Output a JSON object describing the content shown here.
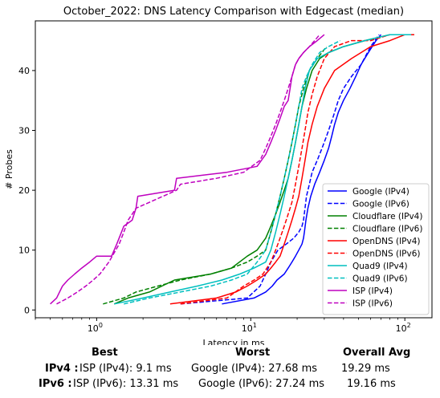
{
  "chart_data": {
    "type": "line",
    "title": "October_2022: DNS Latency Comparison with Edgecast (median)",
    "xlabel": "Latency in ms",
    "ylabel": "# Probes",
    "xscale": "log",
    "xlim": [
      0.4,
      150
    ],
    "ylim": [
      -1.3,
      48.3
    ],
    "xticks": [
      1,
      10,
      100
    ],
    "xtick_labels": [
      "10^0",
      "10^1",
      "10^2"
    ],
    "yticks": [
      0,
      10,
      20,
      30,
      40
    ],
    "grid": false,
    "legend": "lower-right",
    "series": [
      {
        "name": "Google (IPv4)",
        "color": "#0000ff",
        "dash": "solid",
        "x": [
          6.5,
          10.5,
          12.5,
          13.8,
          14.8,
          16.5,
          17.5,
          18.5,
          19.5,
          20.5,
          21.5,
          22.0,
          22.3,
          22.8,
          23.5,
          24.5,
          26.0,
          28.0,
          30.0,
          32.0,
          33.5,
          35.0,
          37.0,
          40.0,
          44.0,
          48.0,
          52.0,
          58.0,
          65.0,
          70.0
        ],
        "y": [
          1,
          2,
          3,
          4,
          5,
          6,
          7,
          8,
          9,
          10,
          11,
          12,
          13,
          15,
          17,
          19,
          21,
          23,
          25,
          27,
          29,
          31,
          33,
          35,
          37,
          39,
          41,
          43,
          45,
          46
        ]
      },
      {
        "name": "Google (IPv6)",
        "color": "#0000ff",
        "dash": "dashed",
        "x": [
          3.5,
          9.5,
          11.5,
          12.5,
          13.5,
          15.0,
          17.0,
          19.0,
          20.5,
          21.5,
          22.0,
          22.5,
          23.0,
          24.0,
          25.0,
          27.0,
          29.0,
          31.0,
          33.0,
          35.0,
          37.0,
          40.0,
          45.0,
          52.0,
          60.0,
          68.0
        ],
        "y": [
          1,
          2,
          4,
          6,
          8,
          10,
          11,
          12,
          13,
          14,
          15,
          17,
          19,
          21,
          23,
          25,
          27,
          29,
          31,
          33,
          35,
          37,
          39,
          41,
          44,
          46
        ]
      },
      {
        "name": "Cloudflare (IPv4)",
        "color": "#008000",
        "dash": "solid",
        "x": [
          1.3,
          1.6,
          2.2,
          3.2,
          5.5,
          7.5,
          9.5,
          11.0,
          12.5,
          13.5,
          14.5,
          15.5,
          16.5,
          17.5,
          18.5,
          19.5,
          20.5,
          21.5,
          23.0,
          25.0,
          28.0,
          32.0,
          40.0,
          55.0,
          80.0,
          115.0
        ],
        "y": [
          1,
          2,
          3,
          5,
          6,
          7,
          9,
          10,
          12,
          14,
          16,
          18,
          20,
          22,
          25,
          28,
          31,
          34,
          37,
          40,
          42,
          43,
          44,
          45,
          46,
          46
        ]
      },
      {
        "name": "Cloudflare (IPv6)",
        "color": "#008000",
        "dash": "dashed",
        "x": [
          1.1,
          1.5,
          1.8,
          2.5,
          3.5,
          5.5,
          7.5,
          9.5,
          11.0,
          12.5,
          13.5,
          14.5,
          15.5,
          16.5,
          17.5,
          18.5,
          19.5,
          20.5,
          22.0,
          24.0,
          27.0,
          31.0
        ],
        "y": [
          1,
          2,
          3,
          4,
          5,
          6,
          7,
          8,
          9,
          10,
          13,
          16,
          19,
          22,
          25,
          28,
          31,
          34,
          37,
          40,
          42,
          44
        ]
      },
      {
        "name": "OpenDNS (IPv4)",
        "color": "#ff0000",
        "dash": "solid",
        "x": [
          3.0,
          6.0,
          8.0,
          9.5,
          11.0,
          12.5,
          13.5,
          14.5,
          15.5,
          16.5,
          17.5,
          18.5,
          19.5,
          20.5,
          21.5,
          22.5,
          23.5,
          25.0,
          27.0,
          30.0,
          35.0,
          45.0,
          60.0,
          80.0,
          100.0,
          115.0
        ],
        "y": [
          1,
          2,
          3,
          4,
          5,
          6,
          7,
          8,
          9,
          11,
          13,
          15,
          17,
          19,
          22,
          25,
          28,
          31,
          34,
          37,
          40,
          42,
          44,
          45,
          46,
          46
        ]
      },
      {
        "name": "OpenDNS (IPv6)",
        "color": "#ff0000",
        "dash": "dashed",
        "x": [
          3.5,
          7.0,
          9.0,
          10.5,
          12.0,
          13.5,
          14.5,
          15.5,
          16.5,
          17.5,
          18.5,
          19.5,
          20.5,
          21.5,
          22.5,
          23.5,
          25.0,
          27.0,
          30.0,
          35.0,
          45.0,
          60.0,
          80.0,
          95.0
        ],
        "y": [
          1,
          2,
          4,
          5,
          6,
          8,
          10,
          12,
          14,
          16,
          18,
          21,
          24,
          27,
          30,
          33,
          36,
          39,
          42,
          44,
          45,
          45,
          46,
          46
        ]
      },
      {
        "name": "Quad9 (IPv4)",
        "color": "#00bfbf",
        "dash": "solid",
        "x": [
          1.3,
          2.0,
          3.0,
          4.5,
          6.5,
          8.5,
          10.5,
          12.5,
          13.5,
          14.5,
          15.5,
          16.5,
          17.5,
          18.5,
          19.5,
          20.5,
          21.5,
          22.5,
          24.0,
          27.0,
          32.0,
          40.0,
          55.0,
          80.0,
          110.0
        ],
        "y": [
          1,
          2,
          3,
          4,
          5,
          6,
          7,
          8,
          10,
          13,
          16,
          19,
          22,
          25,
          28,
          31,
          34,
          37,
          40,
          42,
          43,
          44,
          45,
          46,
          46
        ]
      },
      {
        "name": "Quad9 (IPv6)",
        "color": "#00bfbf",
        "dash": "dashed",
        "x": [
          1.5,
          2.2,
          3.5,
          5.5,
          7.5,
          9.5,
          11.0,
          12.5,
          13.5,
          14.5,
          15.5,
          16.5,
          17.5,
          18.5,
          19.5,
          20.5,
          21.5,
          23.0,
          25.0,
          28.0,
          32.0,
          38.0
        ],
        "y": [
          1,
          2,
          3,
          4,
          5,
          6,
          8,
          10,
          13,
          16,
          19,
          22,
          25,
          28,
          31,
          34,
          37,
          39,
          41,
          43,
          44,
          45
        ]
      },
      {
        "name": "ISP (IPv4)",
        "color": "#bf00bf",
        "dash": "solid",
        "x": [
          0.5,
          0.55,
          0.6,
          0.65,
          0.72,
          0.8,
          0.9,
          1.0,
          1.1,
          1.25,
          1.35,
          1.45,
          1.5,
          1.7,
          1.8,
          1.85,
          3.2,
          3.3,
          7.0,
          11.0,
          12.5,
          13.5,
          14.5,
          15.5,
          16.5,
          17.5,
          18.0,
          18.5,
          19.5,
          20.5,
          22.0,
          24.0,
          27.0,
          30.0
        ],
        "y": [
          1,
          2,
          4,
          5,
          6,
          7,
          8,
          9,
          9,
          9,
          11,
          13,
          14,
          15,
          17,
          19,
          20,
          22,
          23,
          24,
          26,
          28,
          30,
          32,
          34,
          35,
          37,
          39,
          41,
          42,
          43,
          44,
          45,
          46
        ]
      },
      {
        "name": "ISP (IPv6)",
        "color": "#bf00bf",
        "dash": "dashed",
        "x": [
          0.55,
          0.65,
          0.75,
          0.85,
          0.95,
          1.05,
          1.2,
          1.4,
          1.5,
          1.6,
          1.7,
          1.8,
          3.3,
          3.5,
          6.0,
          9.0,
          11.5,
          12.5,
          13.5,
          14.5,
          15.5,
          16.5,
          17.5,
          18.5,
          19.5,
          20.5,
          22.0,
          24.0,
          26.0,
          28.0
        ],
        "y": [
          1,
          2,
          3,
          4,
          5,
          6,
          8,
          11,
          13,
          15,
          16,
          17,
          20,
          21,
          22,
          23,
          25,
          27,
          29,
          31,
          33,
          35,
          37,
          39,
          41,
          42,
          43,
          44,
          45,
          46
        ]
      }
    ]
  },
  "summary": {
    "headers": {
      "best": "Best",
      "worst": "Worst",
      "avg": "Overall Avg"
    },
    "rows": [
      {
        "label": "IPv4 :",
        "best": "ISP (IPv4): 9.1 ms",
        "worst": "Google (IPv4): 27.68 ms",
        "avg": "19.29 ms"
      },
      {
        "label": "IPv6 :",
        "best": "ISP (IPv6): 13.31 ms",
        "worst": "Google (IPv6): 27.24 ms",
        "avg": "19.16 ms"
      }
    ]
  }
}
